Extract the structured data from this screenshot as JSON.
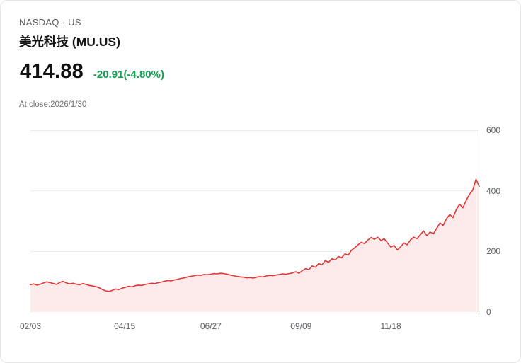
{
  "header": {
    "exchange": "NASDAQ · US",
    "title": "美光科技 (MU.US)",
    "price": "414.88",
    "change": "-20.91(-4.80%)",
    "close_label": "At close:2026/1/30"
  },
  "colors": {
    "line": "#e23636",
    "area": "#fcebea",
    "change_green": "#149e53",
    "grid": "#ebebeb",
    "axis": "#999999",
    "tick_text": "#5c5f63"
  },
  "chart_data": {
    "type": "area",
    "title": "美光科技 (MU.US) one-year price history",
    "xlabel": "",
    "ylabel": "",
    "ylim": [
      0,
      600
    ],
    "y_ticks": [
      600,
      400,
      200,
      0
    ],
    "x_ticks": [
      "02/03",
      "04/15",
      "06/27",
      "09/09",
      "11/18"
    ],
    "x_tick_pos": [
      0,
      0.21,
      0.402,
      0.603,
      0.803
    ],
    "grid": true,
    "legend": false,
    "last_close": 414.88,
    "points": [
      90,
      93,
      89,
      92,
      96,
      100,
      97,
      94,
      91,
      98,
      101,
      96,
      93,
      95,
      92,
      90,
      94,
      91,
      88,
      86,
      84,
      80,
      74,
      70,
      68,
      72,
      76,
      74,
      79,
      82,
      85,
      83,
      87,
      89,
      88,
      91,
      93,
      95,
      94,
      97,
      99,
      102,
      104,
      103,
      106,
      108,
      111,
      113,
      116,
      118,
      120,
      122,
      121,
      124,
      123,
      125,
      127,
      126,
      128,
      127,
      125,
      122,
      120,
      118,
      116,
      115,
      113,
      114,
      112,
      115,
      117,
      116,
      119,
      121,
      120,
      122,
      124,
      126,
      125,
      127,
      129,
      133,
      128,
      137,
      143,
      140,
      152,
      148,
      160,
      156,
      170,
      164,
      176,
      172,
      183,
      179,
      192,
      188,
      204,
      212,
      222,
      230,
      226,
      238,
      246,
      240,
      247,
      236,
      242,
      228,
      214,
      220,
      205,
      215,
      228,
      222,
      238,
      247,
      242,
      255,
      268,
      252,
      264,
      258,
      276,
      294,
      286,
      308,
      322,
      312,
      338,
      356,
      344,
      368,
      388,
      402,
      438,
      415
    ]
  }
}
